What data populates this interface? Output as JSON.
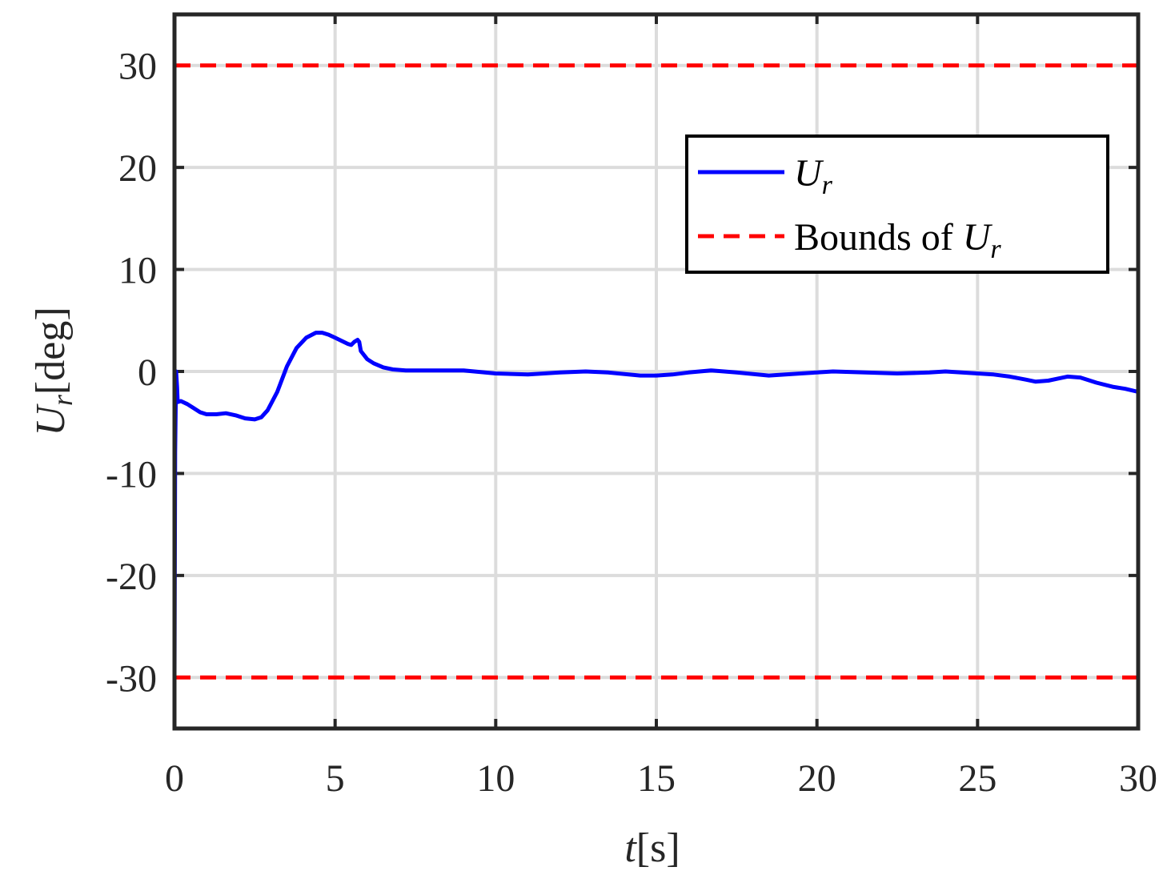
{
  "chart_data": {
    "type": "line",
    "xlim": [
      0,
      30
    ],
    "ylim": [
      -35,
      35
    ],
    "xticks": [
      "0",
      "5",
      "10",
      "15",
      "20",
      "25",
      "30"
    ],
    "yticks": [
      "30",
      "20",
      "10",
      "0",
      "-10",
      "-20",
      "-30"
    ],
    "xlabel": {
      "var": "t",
      "unit": "[s]"
    },
    "ylabel": {
      "var": "U",
      "sub": "r",
      "unit": "[deg]"
    },
    "grid": true,
    "legend_position": "top-right",
    "series": [
      {
        "name": "Ur",
        "label": {
          "var": "U",
          "sub": "r"
        },
        "color": "#0000ff",
        "style": "solid",
        "x": [
          0.0,
          0.02,
          0.05,
          0.08,
          0.1,
          0.2,
          0.4,
          0.6,
          0.8,
          1.0,
          1.3,
          1.6,
          1.9,
          2.2,
          2.5,
          2.7,
          2.9,
          3.2,
          3.5,
          3.8,
          4.1,
          4.4,
          4.6,
          4.8,
          5.0,
          5.2,
          5.4,
          5.5,
          5.6,
          5.7,
          5.75,
          5.8,
          6.0,
          6.2,
          6.5,
          6.8,
          7.2,
          8.0,
          9.0,
          10.0,
          11.0,
          12.0,
          12.8,
          13.5,
          14.5,
          15.0,
          15.5,
          16.0,
          16.7,
          17.5,
          18.5,
          19.5,
          20.5,
          21.5,
          22.5,
          23.5,
          24.0,
          24.5,
          25.5,
          26.0,
          26.5,
          26.8,
          27.2,
          27.5,
          27.8,
          28.2,
          28.7,
          29.2,
          29.6,
          30.0
        ],
        "y": [
          -30.0,
          -8.0,
          0.0,
          -1.5,
          -3.0,
          -2.9,
          -3.2,
          -3.6,
          -4.0,
          -4.2,
          -4.2,
          -4.1,
          -4.3,
          -4.6,
          -4.7,
          -4.5,
          -3.8,
          -2.0,
          0.5,
          2.3,
          3.3,
          3.8,
          3.8,
          3.6,
          3.3,
          3.0,
          2.7,
          2.6,
          2.9,
          3.1,
          2.9,
          2.0,
          1.2,
          0.8,
          0.4,
          0.2,
          0.1,
          0.1,
          0.1,
          -0.2,
          -0.3,
          -0.1,
          0.0,
          -0.1,
          -0.4,
          -0.4,
          -0.3,
          -0.1,
          0.1,
          -0.1,
          -0.4,
          -0.2,
          0.0,
          -0.1,
          -0.2,
          -0.1,
          0.0,
          -0.1,
          -0.3,
          -0.5,
          -0.8,
          -1.0,
          -0.9,
          -0.7,
          -0.5,
          -0.6,
          -1.1,
          -1.5,
          -1.7,
          -2.0
        ]
      },
      {
        "name": "Bounds of Ur",
        "label": {
          "prefix": "Bounds of ",
          "var": "U",
          "sub": "r"
        },
        "color": "#ff0000",
        "style": "dashed",
        "values": [
          30,
          -30
        ]
      }
    ]
  }
}
